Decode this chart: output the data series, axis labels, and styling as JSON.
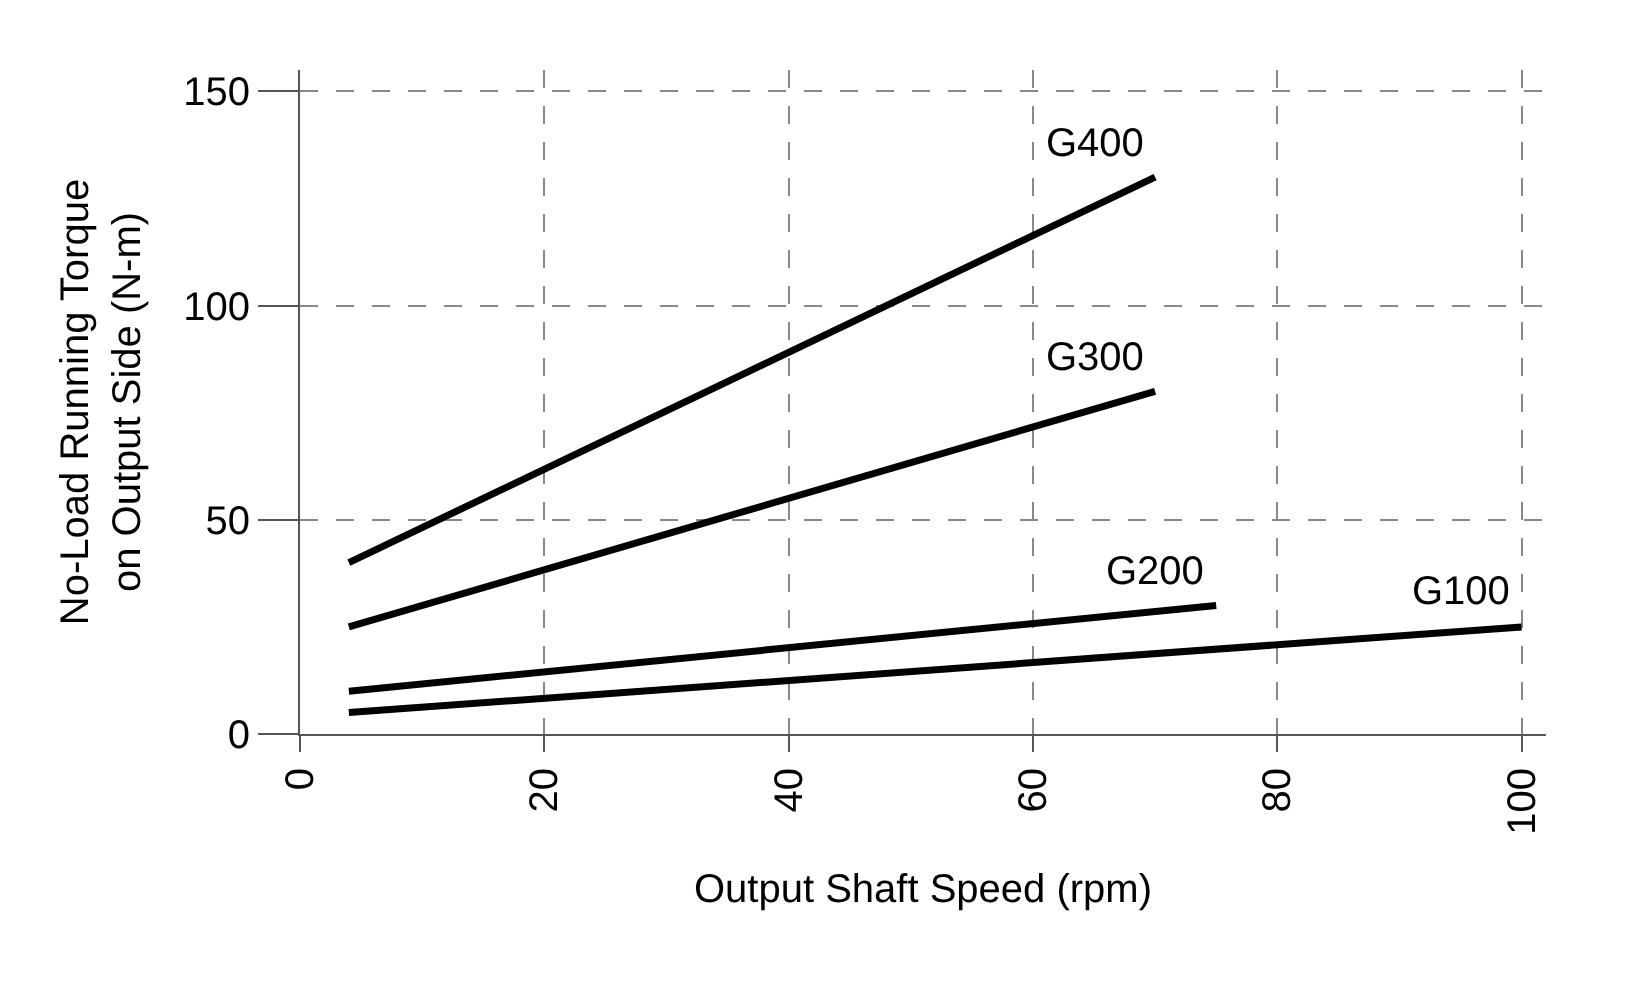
{
  "chart_data": {
    "type": "line",
    "xlabel": "Output Shaft Speed (rpm)",
    "ylabel": "No-Load Running Torque\non Output Side (N-m)",
    "series": [
      {
        "name": "G400",
        "color": "#000000",
        "x": [
          4,
          70
        ],
        "values": [
          40,
          130
        ]
      },
      {
        "name": "G300",
        "color": "#000000",
        "x": [
          4,
          70
        ],
        "values": [
          25,
          80
        ]
      },
      {
        "name": "G200",
        "color": "#000000",
        "x": [
          4,
          75
        ],
        "values": [
          10,
          30
        ]
      },
      {
        "name": "G100",
        "color": "#000000",
        "x": [
          4,
          100
        ],
        "values": [
          5,
          25
        ]
      }
    ],
    "xlim": [
      0,
      102
    ],
    "xticks": [
      0,
      20,
      40,
      60,
      80,
      100
    ],
    "ylim": [
      0,
      155
    ],
    "yticks": [
      0,
      50,
      100,
      150
    ],
    "grid": true,
    "marker": "none",
    "line_style": "solid"
  }
}
